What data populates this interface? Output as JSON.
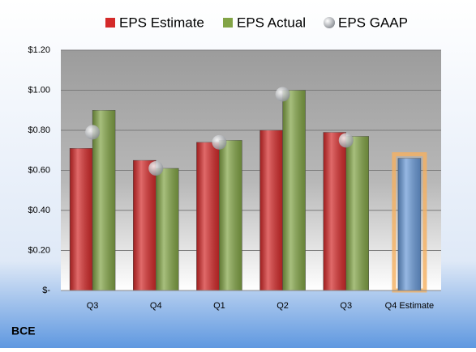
{
  "chart_data": {
    "type": "bar",
    "categories": [
      "Q3",
      "Q4",
      "Q1",
      "Q2",
      "Q3",
      "Q4 Estimate"
    ],
    "series": [
      {
        "name": "EPS Estimate",
        "color": "#d42a2a",
        "values": [
          0.71,
          0.65,
          0.74,
          0.8,
          0.79,
          0.66
        ],
        "highlight": {
          "index": 5,
          "color": "#6a9ad8",
          "glow": "#f5b060"
        }
      },
      {
        "name": "EPS Actual",
        "color": "#82a446",
        "values": [
          0.9,
          0.61,
          0.75,
          1.0,
          0.77,
          null
        ]
      },
      {
        "name": "EPS GAAP",
        "color": "#b8bcc2",
        "marker": "circle",
        "values": [
          0.79,
          0.61,
          0.74,
          0.98,
          0.75,
          null
        ]
      }
    ],
    "ylim": [
      0,
      1.2
    ],
    "yticks": [
      {
        "value": 0,
        "label": "$-"
      },
      {
        "value": 0.2,
        "label": "$0.20"
      },
      {
        "value": 0.4,
        "label": "$0.40"
      },
      {
        "value": 0.6,
        "label": "$0.60"
      },
      {
        "value": 0.8,
        "label": "$0.80"
      },
      {
        "value": 1.0,
        "label": "$1.00"
      },
      {
        "value": 1.2,
        "label": "$1.20"
      }
    ],
    "grid": true,
    "legend": "top",
    "footer": "BCE"
  }
}
